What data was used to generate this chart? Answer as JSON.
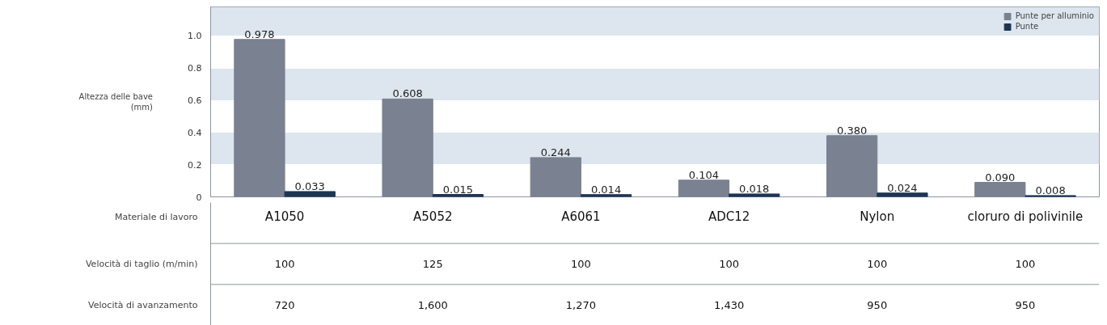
{
  "chart_data": {
    "type": "bar",
    "ylabel": "Altezza delle bave\n(mm)",
    "xlabel": "Materiale di lavoro",
    "categories": [
      "A1050",
      "A5052",
      "A6061",
      "ADC12",
      "Nylon",
      "cloruro di polivinile"
    ],
    "series": [
      {
        "name": "Punte per alluminio",
        "color": "#7a8191",
        "values": [
          0.978,
          0.608,
          0.244,
          0.104,
          0.38,
          0.09
        ],
        "value_labels": [
          "0.978",
          "0.608",
          "0.244",
          "0.104",
          "0.380",
          "0.090"
        ]
      },
      {
        "name": "Punte",
        "color": "#1c3553",
        "values": [
          0.033,
          0.015,
          0.014,
          0.018,
          0.024,
          0.008
        ],
        "value_labels": [
          "0.033",
          "0.015",
          "0.014",
          "0.018",
          "0.024",
          "0.008"
        ]
      }
    ],
    "ylim": [
      0,
      1.18
    ],
    "yticks": [
      0,
      0.2,
      0.4,
      0.6,
      0.8,
      {
        "value": 1,
        "label": "1.0"
      }
    ],
    "grid": "y",
    "legend": "top right",
    "annotations": [
      "Velocità di taglio (m/min)",
      "100",
      "125",
      "100",
      "100",
      "100",
      "100",
      "Velocità di avanzamento",
      "720",
      "1,600",
      "1,270",
      "1,430",
      "950",
      "950"
    ]
  }
}
